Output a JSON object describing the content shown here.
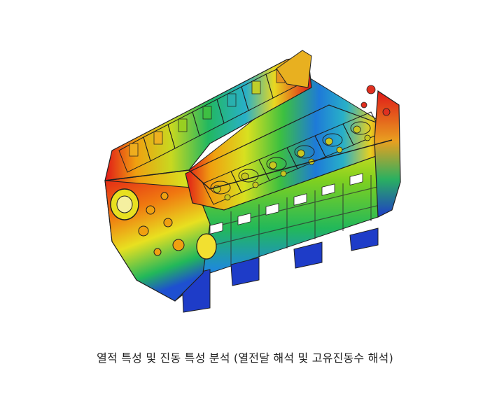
{
  "caption": "열적 특성 및 진동 특성 분석 (열전달 해석 및 고유진동수 해석)",
  "image": {
    "subject": "engine-block-thermal-contour",
    "colors": {
      "hot": "#e01818",
      "warm": "#f07a10",
      "mid": "#e8e020",
      "green": "#2ab82a",
      "cool": "#1eb4c8",
      "cold": "#1e3cc8"
    }
  }
}
